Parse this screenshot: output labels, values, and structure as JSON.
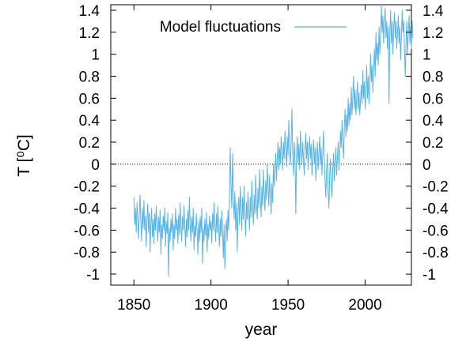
{
  "chart_data": {
    "type": "line",
    "title": "",
    "xlabel": "year",
    "ylabel": "T [⁰C]",
    "xlim": [
      1835,
      2030
    ],
    "ylim": [
      -1.1,
      1.45
    ],
    "x_ticks": [
      1850,
      1900,
      1950,
      2000
    ],
    "x_tick_labels": [
      "1850",
      "1900",
      "1950",
      "2000"
    ],
    "y_ticks": [
      -1,
      -0.8,
      -0.6,
      -0.4,
      -0.2,
      0,
      0.2,
      0.4,
      0.6,
      0.8,
      1,
      1.2,
      1.4
    ],
    "y_tick_labels": [
      "-1",
      "-0.8",
      "-0.6",
      "-0.4",
      "-0.2",
      "0",
      "0.2",
      "0.4",
      "0.6",
      "0.8",
      "1",
      "1.2",
      "1.4"
    ],
    "y2_tick_labels": [
      "-1",
      "-0.8",
      "-0.6",
      "-0.4",
      "-0.2",
      "0",
      "0.2",
      "0.4",
      "0.6",
      "0.8",
      "1",
      "1.2",
      "1.4"
    ],
    "reference_line": {
      "y": 0,
      "style": "dotted",
      "color": "#000000"
    },
    "grid": false,
    "legend_position": "top-left",
    "series": [
      {
        "name": "Model fluctuations",
        "color": "#56b4e9",
        "x_start": 1850,
        "x_step": 0.5,
        "values": [
          -0.3,
          -0.55,
          -0.4,
          -0.62,
          -0.35,
          -0.5,
          -0.68,
          -0.45,
          -0.28,
          -0.52,
          -0.7,
          -0.4,
          -0.58,
          -0.33,
          -0.6,
          -0.47,
          -0.75,
          -0.5,
          -0.36,
          -0.62,
          -0.44,
          -0.8,
          -0.55,
          -0.4,
          -0.66,
          -0.5,
          -0.72,
          -0.45,
          -0.6,
          -0.38,
          -0.57,
          -0.7,
          -0.48,
          -0.62,
          -0.42,
          -0.82,
          -0.55,
          -0.68,
          -0.47,
          -0.6,
          -0.4,
          -0.75,
          -0.52,
          -0.63,
          -0.44,
          -1.02,
          -0.58,
          -0.7,
          -0.5,
          -0.62,
          -0.45,
          -0.78,
          -0.55,
          -0.68,
          -0.4,
          -0.6,
          -0.5,
          -0.72,
          -0.46,
          -0.64,
          -0.35,
          -0.57,
          -0.7,
          -0.48,
          -0.6,
          -0.38,
          -0.55,
          -0.75,
          -0.5,
          -0.66,
          -0.42,
          -0.6,
          -0.3,
          -0.55,
          -0.7,
          -0.48,
          -0.62,
          -0.4,
          -0.78,
          -0.56,
          -0.66,
          -0.45,
          -0.6,
          -0.82,
          -0.52,
          -0.7,
          -0.48,
          -0.62,
          -0.4,
          -0.9,
          -0.58,
          -0.7,
          -0.5,
          -0.65,
          -0.44,
          -0.8,
          -0.55,
          -0.68,
          -0.47,
          -0.6,
          -0.52,
          -0.72,
          -0.45,
          -0.6,
          -0.35,
          -0.55,
          -0.7,
          -0.45,
          -0.62,
          -0.38,
          -0.58,
          -0.75,
          -0.5,
          -0.66,
          -0.42,
          -0.6,
          -0.85,
          -0.55,
          -0.95,
          -0.62,
          -0.5,
          -0.7,
          -0.42,
          -0.6,
          -0.3,
          0.15,
          -0.2,
          -0.4,
          0.1,
          -0.3,
          -0.5,
          -0.25,
          -0.6,
          -0.35,
          -0.8,
          -0.45,
          -0.3,
          -0.55,
          -0.2,
          -0.4,
          -0.6,
          -0.3,
          -0.5,
          -0.2,
          -0.45,
          -0.65,
          -0.35,
          -0.5,
          -0.25,
          -0.42,
          -0.6,
          -0.3,
          -0.48,
          -0.15,
          -0.38,
          -0.55,
          -0.28,
          -0.45,
          -0.1,
          -0.35,
          -0.5,
          -0.22,
          -0.4,
          -0.05,
          -0.3,
          -0.48,
          -0.2,
          -0.38,
          -0.05,
          -0.25,
          -0.42,
          -0.15,
          -0.32,
          0.0,
          -0.2,
          -0.38,
          -0.1,
          -0.28,
          -0.45,
          -0.18,
          -0.35,
          0.0,
          -0.2,
          -0.05,
          0.1,
          -0.15,
          0.05,
          0.2,
          -0.05,
          0.15,
          0.0,
          0.25,
          0.1,
          -0.05,
          0.2,
          0.05,
          0.3,
          0.12,
          -0.02,
          0.25,
          0.08,
          0.4,
          0.15,
          0.0,
          0.2,
          0.5,
          0.1,
          -0.1,
          0.2,
          0.05,
          -0.45,
          0.1,
          0.25,
          0.0,
          0.18,
          -0.05,
          0.3,
          0.12,
          0.0,
          0.2,
          0.05,
          -0.1,
          0.15,
          0.28,
          0.05,
          0.2,
          -0.05,
          0.12,
          0.25,
          0.05,
          0.18,
          -0.1,
          0.1,
          0.22,
          0.0,
          0.15,
          -0.15,
          0.05,
          0.2,
          -0.05,
          0.1,
          0.25,
          0.0,
          0.15,
          -0.1,
          0.1,
          0.3,
          0.05,
          -0.15,
          -0.3,
          -0.05,
          0.1,
          -0.25,
          -0.4,
          -0.1,
          0.05,
          -0.2,
          -0.3,
          -0.05,
          0.1,
          -0.15,
          0.0,
          0.15,
          -0.1,
          0.05,
          0.2,
          -0.05,
          0.1,
          0.3,
          0.15,
          0.4,
          0.2,
          0.05,
          0.35,
          0.5,
          0.25,
          0.45,
          0.3,
          0.6,
          0.35,
          0.55,
          0.4,
          0.7,
          0.45,
          0.62,
          0.8,
          0.5,
          0.68,
          0.45,
          0.6,
          0.75,
          0.5,
          0.65,
          0.45,
          0.58,
          0.72,
          0.55,
          0.85,
          0.6,
          0.75,
          0.5,
          0.65,
          0.9,
          0.6,
          0.8,
          0.55,
          0.7,
          1.0,
          0.75,
          0.9,
          0.65,
          0.85,
          1.05,
          0.8,
          1.2,
          0.95,
          1.1,
          0.9,
          1.25,
          1.0,
          1.15,
          1.45,
          1.2,
          1.35,
          1.1,
          1.3,
          1.42,
          1.15,
          1.3,
          1.05,
          1.25,
          0.55,
          1.2,
          1.4,
          1.1,
          1.3,
          1.0,
          1.25,
          1.38,
          1.15,
          1.3,
          1.05,
          1.2,
          1.35,
          1.1,
          1.25,
          0.95,
          1.15,
          1.4,
          1.2,
          1.3,
          1.05,
          0.8,
          1.1,
          1.3,
          1.0,
          1.2,
          1.35,
          1.1,
          1.25,
          1.05,
          1.3,
          1.15
        ]
      }
    ]
  }
}
